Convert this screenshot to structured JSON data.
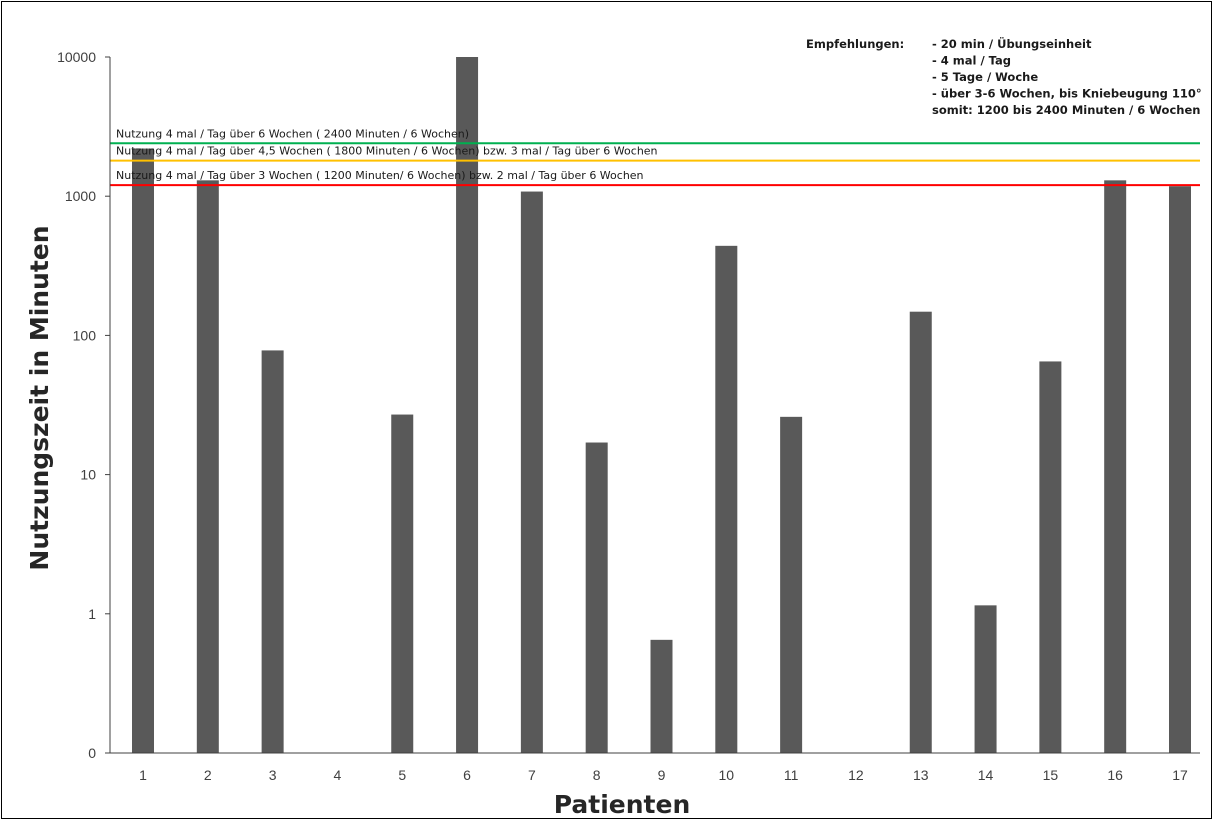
{
  "chart_data": {
    "type": "bar",
    "xlabel": "Patienten",
    "ylabel": "Nutzungszeit in Minuten",
    "yscale": "log",
    "ylim": [
      0.1,
      10000
    ],
    "yticks": [
      {
        "value": 0.1,
        "label": "0"
      },
      {
        "value": 1,
        "label": "1"
      },
      {
        "value": 10,
        "label": "10"
      },
      {
        "value": 100,
        "label": "100"
      },
      {
        "value": 1000,
        "label": "1000"
      },
      {
        "value": 10000,
        "label": "10000"
      }
    ],
    "categories": [
      "1",
      "2",
      "3",
      "4",
      "5",
      "6",
      "7",
      "8",
      "9",
      "10",
      "11",
      "12",
      "13",
      "14",
      "15",
      "16",
      "17"
    ],
    "values": [
      2200,
      1300,
      78,
      0,
      27,
      10000,
      1080,
      17,
      0.65,
      440,
      26,
      0,
      148,
      1.15,
      65,
      1300,
      1180
    ],
    "bar_color": "#595959",
    "grid": false,
    "reference_lines": [
      {
        "value": 2400,
        "color": "#00b050",
        "label": "Nutzung 4 mal / Tag über 6 Wochen ( 2400 Minuten / 6 Wochen)"
      },
      {
        "value": 1800,
        "color": "#ffc000",
        "label": "Nutzung 4 mal / Tag über 4,5 Wochen ( 1800 Minuten / 6 Wochen) bzw. 3 mal / Tag über 6 Wochen"
      },
      {
        "value": 1200,
        "color": "#ff0000",
        "label": "Nutzung 4 mal / Tag über 3 Wochen ( 1200 Minuten/ 6 Wochen) bzw. 2 mal / Tag über 6 Wochen"
      }
    ],
    "annotation": {
      "heading": "Empfehlungen:",
      "lines": [
        "- 20 min / Übungseinheit",
        "- 4 mal / Tag",
        "- 5 Tage / Woche",
        "- über 3-6 Wochen, bis Kniebeugung 110°",
        "somit: 1200 bis 2400 Minuten / 6 Wochen"
      ]
    }
  }
}
